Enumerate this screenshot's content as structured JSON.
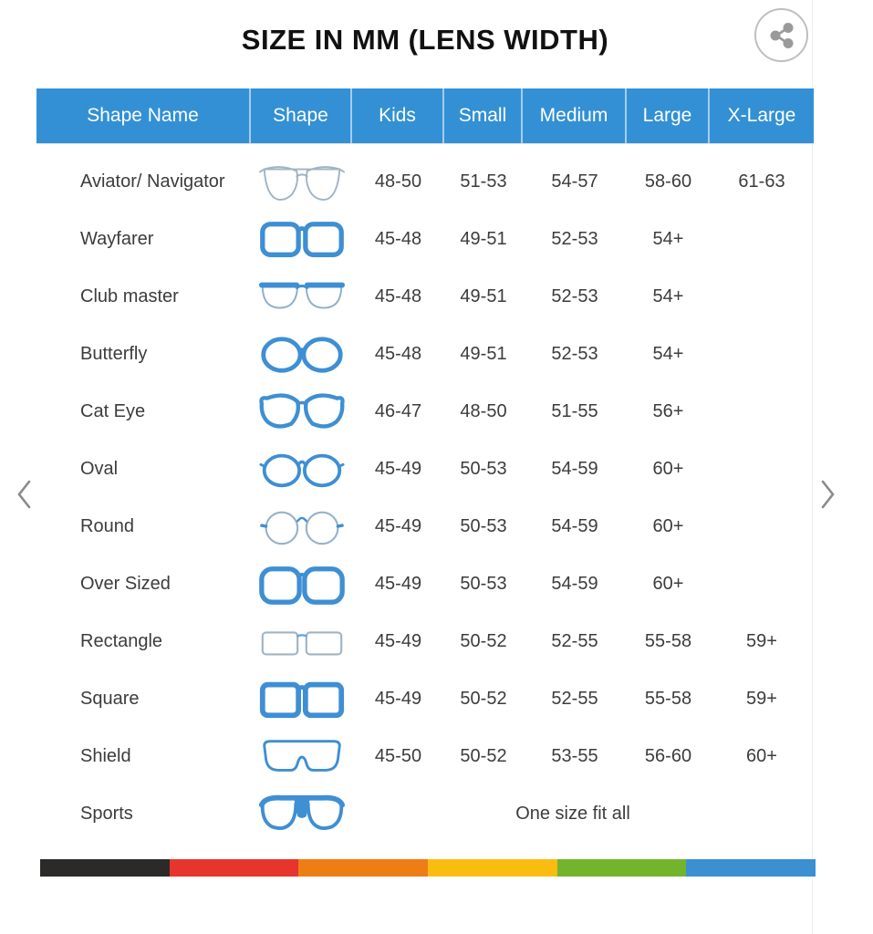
{
  "chart_data": {
    "type": "table",
    "title": "SIZE IN MM (LENS WIDTH)",
    "columns": [
      "Shape Name",
      "Shape",
      "Kids",
      "Small",
      "Medium",
      "Large",
      "X-Large"
    ],
    "rows": [
      {
        "name": "Aviator/ Navigator",
        "icon": "aviator-glasses-icon",
        "sizes": [
          "48-50",
          "51-53",
          "54-57",
          "58-60",
          "61-63"
        ]
      },
      {
        "name": "Wayfarer",
        "icon": "wayfarer-glasses-icon",
        "sizes": [
          "45-48",
          "49-51",
          "52-53",
          "54+",
          ""
        ]
      },
      {
        "name": "Club master",
        "icon": "clubmaster-glasses-icon",
        "sizes": [
          "45-48",
          "49-51",
          "52-53",
          "54+",
          ""
        ]
      },
      {
        "name": "Butterfly",
        "icon": "butterfly-glasses-icon",
        "sizes": [
          "45-48",
          "49-51",
          "52-53",
          "54+",
          ""
        ]
      },
      {
        "name": "Cat Eye",
        "icon": "cateye-glasses-icon",
        "sizes": [
          "46-47",
          "48-50",
          "51-55",
          "56+",
          ""
        ]
      },
      {
        "name": "Oval",
        "icon": "oval-glasses-icon",
        "sizes": [
          "45-49",
          "50-53",
          "54-59",
          "60+",
          ""
        ]
      },
      {
        "name": "Round",
        "icon": "round-glasses-icon",
        "sizes": [
          "45-49",
          "50-53",
          "54-59",
          "60+",
          ""
        ]
      },
      {
        "name": "Over Sized",
        "icon": "oversized-glasses-icon",
        "sizes": [
          "45-49",
          "50-53",
          "54-59",
          "60+",
          ""
        ]
      },
      {
        "name": "Rectangle",
        "icon": "rectangle-glasses-icon",
        "sizes": [
          "45-49",
          "50-52",
          "52-55",
          "55-58",
          "59+"
        ]
      },
      {
        "name": "Square",
        "icon": "square-glasses-icon",
        "sizes": [
          "45-49",
          "50-52",
          "52-55",
          "55-58",
          "59+"
        ]
      },
      {
        "name": "Shield",
        "icon": "shield-glasses-icon",
        "sizes": [
          "45-50",
          "50-52",
          "53-55",
          "56-60",
          "60+"
        ]
      },
      {
        "name": "Sports",
        "icon": "sports-glasses-icon",
        "span_text": "One size fit all"
      }
    ]
  },
  "footer_bar_colors": [
    "#2b2a29",
    "#e6352c",
    "#ee7d15",
    "#fbbc12",
    "#72b52d",
    "#3a90d1"
  ],
  "colors": {
    "header_bg": "#3390d5",
    "header_text": "#ffffff",
    "body_text": "#3c3c3c",
    "frame_blue": "#3e8fd3",
    "frame_light": "#9fb4c4",
    "icon_gray": "#9a9a9a"
  }
}
